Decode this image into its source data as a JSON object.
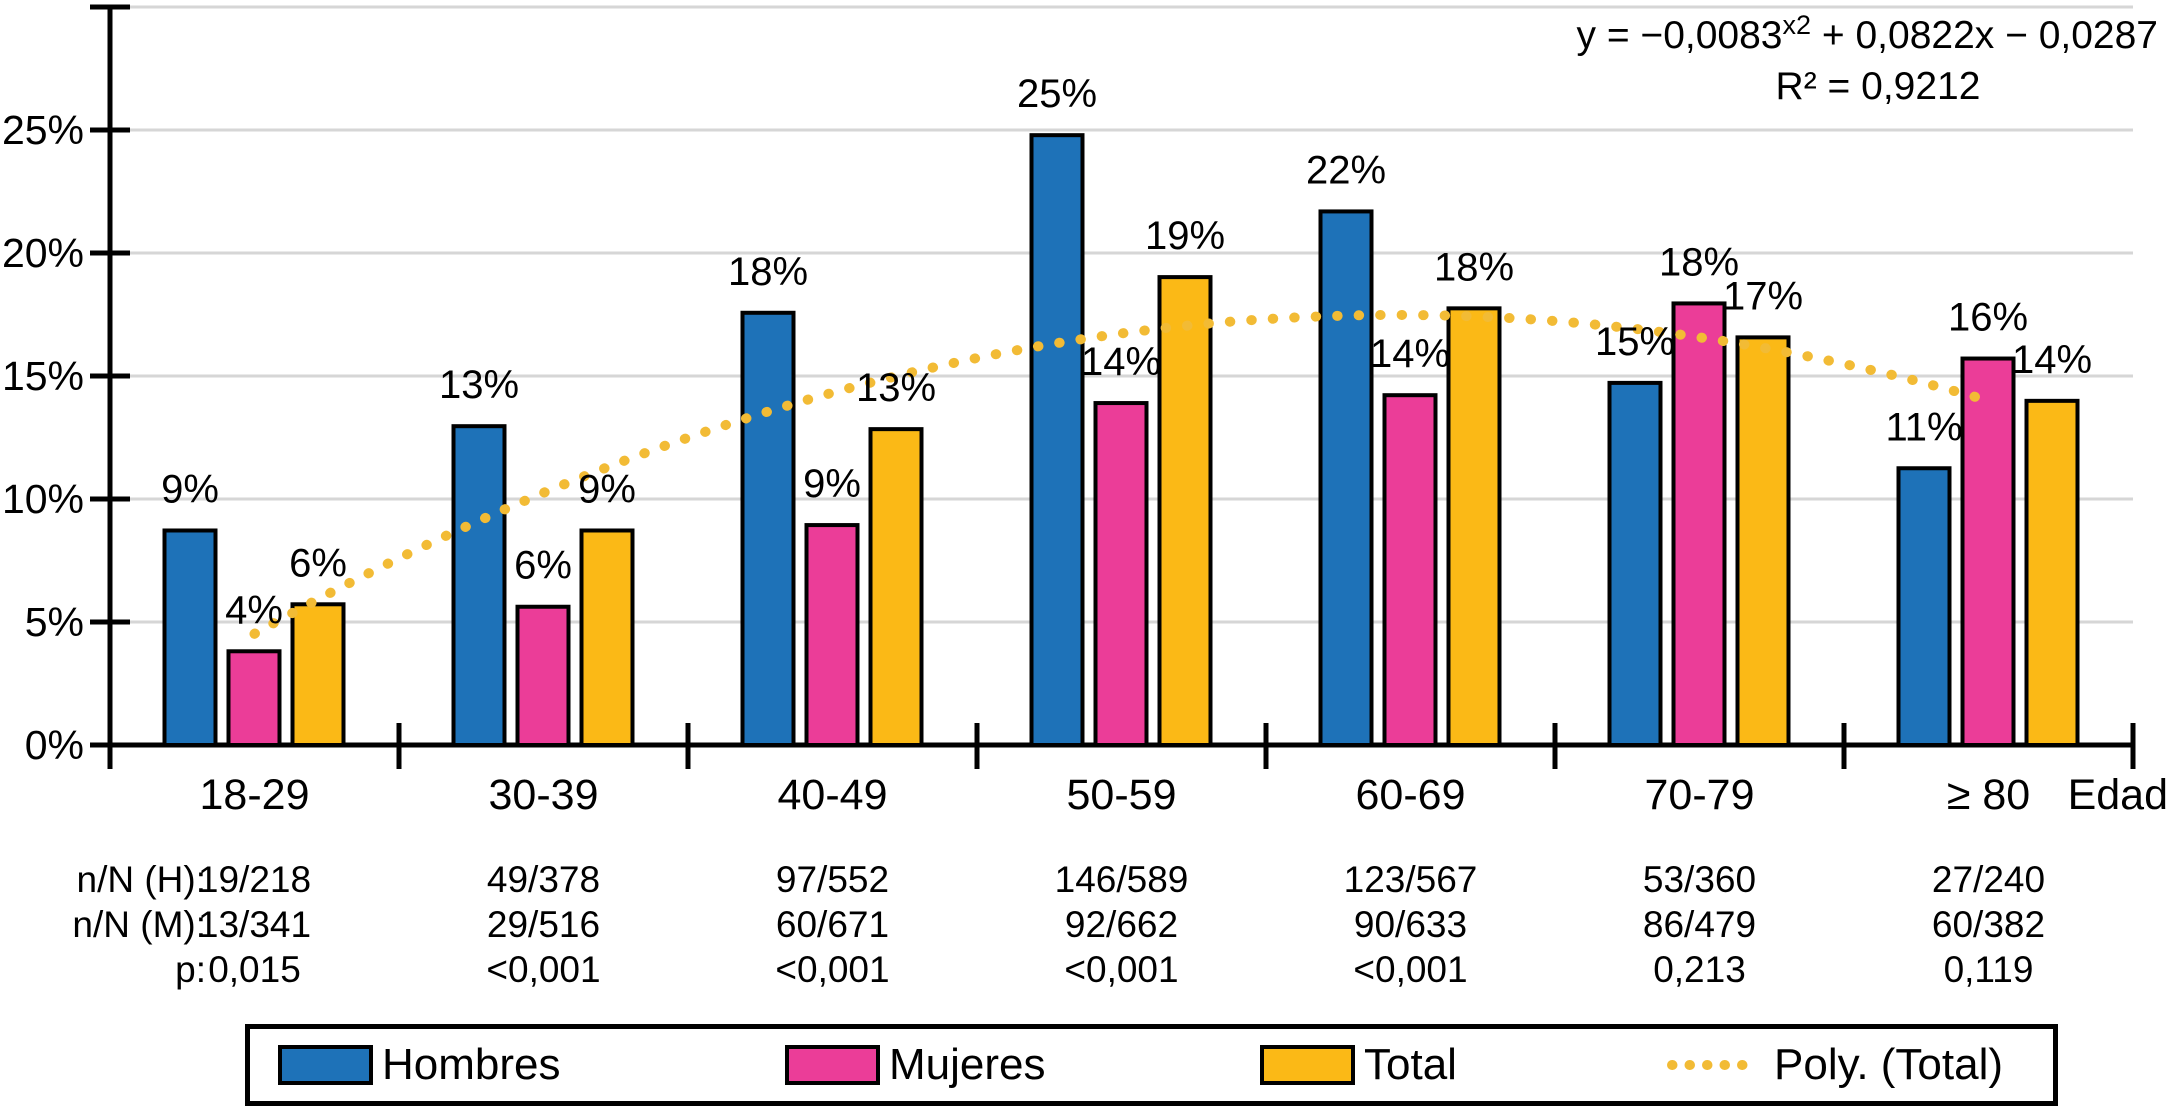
{
  "page": {
    "background": "#FFFFFF"
  },
  "equation": {
    "prefix": "y = −0,0083",
    "superscript": "x2",
    "suffix": " + 0,0822x − 0,0287",
    "r_squared": "R² = 0,9212"
  },
  "chart_data": {
    "type": "bar",
    "title": "",
    "xlabel": "Edad",
    "ylabel": "",
    "categories": [
      "18-29",
      "30-39",
      "40-49",
      "50-59",
      "60-69",
      "70-79",
      "≥ 80"
    ],
    "ylim": [
      0,
      30
    ],
    "ytick_step": 5,
    "ytick_labels": [
      "0%",
      "5%",
      "10%",
      "15%",
      "20%",
      "25%"
    ],
    "grid": "horizontal",
    "legend_position": "bottom",
    "series": [
      {
        "name": "Hombres",
        "color": "#1E72B8",
        "values": [
          8.72,
          12.96,
          17.57,
          24.79,
          21.69,
          14.72,
          11.25
        ],
        "labels": [
          "9%",
          "13%",
          "18%",
          "25%",
          "22%",
          "15%",
          "11%"
        ]
      },
      {
        "name": "Mujeres",
        "color": "#EB3D98",
        "values": [
          3.81,
          5.62,
          8.94,
          13.9,
          14.22,
          17.95,
          15.71
        ],
        "labels": [
          "4%",
          "6%",
          "9%",
          "14%",
          "14%",
          "18%",
          "16%"
        ]
      },
      {
        "name": "Total",
        "color": "#FBB916",
        "values": [
          5.72,
          8.72,
          12.84,
          19.02,
          17.75,
          16.57,
          13.99
        ],
        "labels": [
          "6%",
          "9%",
          "13%",
          "19%",
          "18%",
          "17%",
          "14%"
        ]
      }
    ],
    "trendline": {
      "name": "Poly. (Total)",
      "applies_to": "Total",
      "type": "polynomial",
      "order": 2,
      "color": "#F2BB35",
      "coeffs_pct": [
        -0.83,
        8.22,
        -2.87
      ],
      "x_range": [
        1,
        7
      ],
      "r2": "0,9212"
    }
  },
  "table": {
    "rows": [
      {
        "label": "n/N (H):",
        "color": "#33589E",
        "values": [
          "19/218",
          "49/378",
          "97/552",
          "146/589",
          "123/567",
          "53/360",
          "27/240"
        ]
      },
      {
        "label": "n/N (M):",
        "color": "#E8428F",
        "values": [
          "13/341",
          "29/516",
          "60/671",
          "92/662",
          "90/633",
          "86/479",
          "60/382"
        ]
      },
      {
        "label": "p:",
        "color": "#000000",
        "values": [
          "0,015",
          "<0,001",
          "<0,001",
          "<0,001",
          "<0,001",
          "0,213",
          "0,119"
        ]
      }
    ]
  },
  "legend": {
    "items": [
      {
        "label": "Hombres",
        "swatch": "box",
        "color": "#1E72B8"
      },
      {
        "label": "Mujeres",
        "swatch": "box",
        "color": "#EB3D98"
      },
      {
        "label": "Total",
        "swatch": "box",
        "color": "#FBB916"
      },
      {
        "label": "Poly. (Total)",
        "swatch": "dotted-line",
        "color": "#F2BB35"
      }
    ]
  }
}
